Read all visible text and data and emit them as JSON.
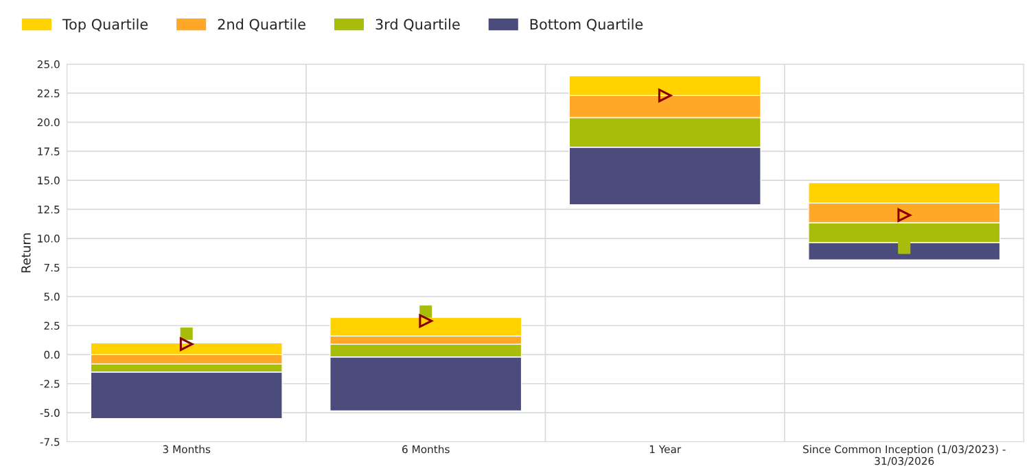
{
  "chart_data": {
    "type": "bar",
    "ylabel": "Return",
    "categories": [
      "3 Months",
      "6 Months",
      "1 Year",
      "Since Common Inception (1/03/2023) - 31/03/2026"
    ],
    "series": [
      {
        "name": "Bottom Quartile",
        "color": "#4b4c7c",
        "base": [
          -5.5,
          -4.85,
          12.9,
          8.15
        ],
        "values": [
          4.0,
          4.65,
          4.95,
          1.5
        ]
      },
      {
        "name": "3rd Quartile",
        "color": "#a8bd0a",
        "base": [
          -1.5,
          -0.2,
          17.85,
          9.65
        ],
        "values": [
          0.7,
          1.1,
          2.55,
          1.7
        ]
      },
      {
        "name": "2nd Quartile",
        "color": "#ffa726",
        "base": [
          -0.8,
          0.9,
          20.4,
          11.35
        ],
        "values": [
          0.8,
          0.7,
          1.9,
          1.7
        ]
      },
      {
        "name": "Top Quartile",
        "color": "#ffd200",
        "base": [
          0.0,
          1.6,
          22.3,
          13.05
        ],
        "values": [
          1.0,
          1.6,
          1.7,
          1.75
        ]
      },
      {
        "type": "scatter",
        "marker": "square",
        "color": "#a8bd0a",
        "x": [
          "3 Months",
          "6 Months",
          "1 Year",
          "Since Common Inception (1/03/2023) - 31/03/2026"
        ],
        "values": [
          1.8,
          3.7,
          null,
          9.2
        ]
      },
      {
        "type": "scatter",
        "marker": "triangle",
        "color": "#8b0000",
        "x": [
          "3 Months",
          "6 Months",
          "1 Year",
          "Since Common Inception (1/03/2023) - 31/03/2026"
        ],
        "values": [
          0.9,
          2.9,
          22.3,
          12.0
        ]
      }
    ],
    "ylim": [
      -7.5,
      25.0
    ],
    "yticks": [
      {
        "value": -7.5,
        "label": "-7.5"
      },
      {
        "value": -5,
        "label": "-5.0"
      },
      {
        "value": -2.5,
        "label": "-2.5"
      },
      {
        "value": 0,
        "label": "0.0"
      },
      {
        "value": 2.5,
        "label": "2.5"
      },
      {
        "value": 5,
        "label": "5.0"
      },
      {
        "value": 7.5,
        "label": "7.5"
      },
      {
        "value": 10,
        "label": "10.0"
      },
      {
        "value": 12.5,
        "label": "12.5"
      },
      {
        "value": 15,
        "label": "15.0"
      },
      {
        "value": 17.5,
        "label": "17.5"
      },
      {
        "value": 20,
        "label": "20.0"
      },
      {
        "value": 22.5,
        "label": "22.5"
      },
      {
        "value": 25,
        "label": "25.0"
      }
    ],
    "grid": true,
    "legend": "top"
  }
}
